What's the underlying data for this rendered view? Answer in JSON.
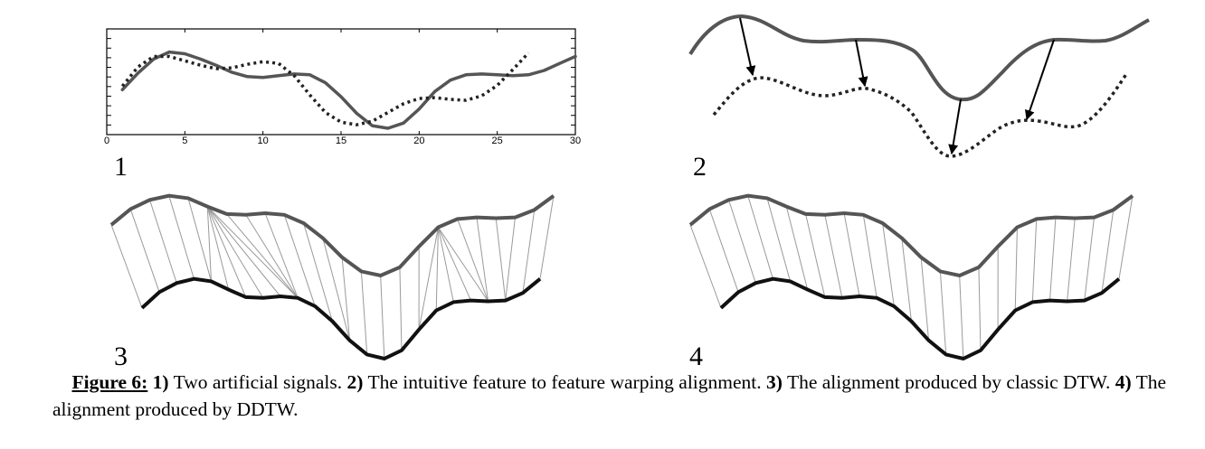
{
  "panels": [
    {
      "label": "1"
    },
    {
      "label": "2"
    },
    {
      "label": "3"
    },
    {
      "label": "4"
    }
  ],
  "chart_data": {
    "type": "line",
    "x_ticks": [
      "0",
      "5",
      "10",
      "15",
      "20",
      "25",
      "30"
    ],
    "xlim": [
      0,
      30
    ],
    "series": [
      {
        "style": "solid",
        "color": "#555555",
        "x": [
          1,
          2,
          3,
          4,
          5,
          6,
          7,
          8,
          9,
          10,
          11,
          12,
          13,
          14,
          15,
          16,
          17,
          18,
          19,
          20,
          21,
          22,
          23,
          24,
          25,
          26,
          27,
          28,
          29,
          30
        ],
        "y": [
          0.44,
          0.63,
          0.79,
          0.87,
          0.85,
          0.79,
          0.72,
          0.64,
          0.59,
          0.58,
          0.6,
          0.62,
          0.61,
          0.52,
          0.36,
          0.17,
          0.03,
          0.0,
          0.06,
          0.22,
          0.42,
          0.55,
          0.61,
          0.62,
          0.61,
          0.6,
          0.61,
          0.66,
          0.74,
          0.82
        ]
      },
      {
        "style": "dotted",
        "color": "#222222",
        "x": [
          1,
          2,
          3,
          4,
          5,
          6,
          7,
          8,
          9,
          10,
          11,
          12,
          13,
          14,
          15,
          16,
          17,
          18,
          19,
          20,
          21,
          22,
          23,
          24,
          25,
          26,
          27
        ],
        "y": [
          0.48,
          0.7,
          0.82,
          0.82,
          0.77,
          0.72,
          0.68,
          0.69,
          0.73,
          0.76,
          0.74,
          0.6,
          0.38,
          0.18,
          0.07,
          0.04,
          0.08,
          0.18,
          0.28,
          0.34,
          0.35,
          0.33,
          0.32,
          0.37,
          0.49,
          0.67,
          0.86
        ]
      }
    ]
  },
  "caption": {
    "lead": "Figure 6:",
    "p1_num": "1)",
    "p1_text": " Two artificial signals. ",
    "p2_num": "2)",
    "p2_text": " The intuitive feature to feature warping alignment. ",
    "p3_num": "3)",
    "p3_text": " The alignment produced by classic DTW. ",
    "p4_num": "4)",
    "p4_text": " The alignment produced by DDTW."
  }
}
